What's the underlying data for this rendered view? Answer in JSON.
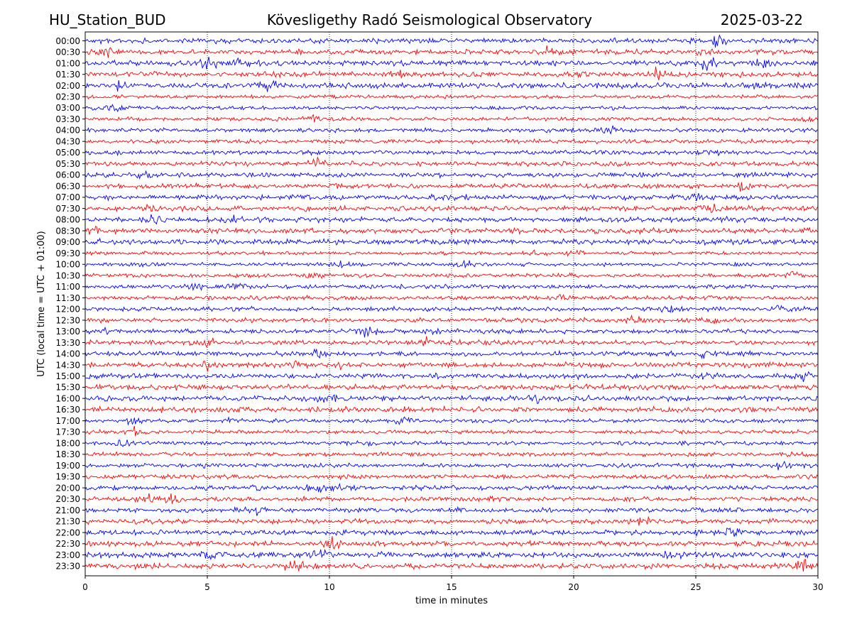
{
  "header": {
    "station": "HU_Station_BUD",
    "observatory": "Kövesligethy Radó Seismological Observatory",
    "date": "2025-03-22"
  },
  "chart_data": {
    "type": "line",
    "title": "Kövesligethy Radó Seismological Observatory",
    "xlabel": "time in minutes",
    "ylabel": "UTC (local time = UTC + 01:00)",
    "xlim": [
      0,
      30
    ],
    "x_ticks": [
      "0",
      "5",
      "10",
      "15",
      "20",
      "25",
      "30"
    ],
    "grid": "vertical dotted at x ticks",
    "trace_colors": [
      "#0000ff",
      "#ff0000"
    ],
    "rows": [
      {
        "label": "00:00",
        "color": "#0000ff",
        "bursts": [
          [
            26.0,
            2.0
          ]
        ]
      },
      {
        "label": "00:30",
        "color": "#ff0000",
        "bursts": [
          [
            0.8,
            1.5
          ],
          [
            18.8,
            1.4
          ],
          [
            25.5,
            1.2
          ]
        ]
      },
      {
        "label": "01:00",
        "color": "#0000ff",
        "bursts": [
          [
            5.0,
            2.2
          ],
          [
            6.2,
            1.6
          ],
          [
            25.5,
            2.4
          ],
          [
            27.7,
            1.6
          ]
        ]
      },
      {
        "label": "01:30",
        "color": "#ff0000",
        "bursts": [
          [
            12.8,
            1.8
          ],
          [
            23.5,
            1.8
          ],
          [
            20.0,
            1.4
          ]
        ]
      },
      {
        "label": "02:00",
        "color": "#0000ff",
        "bursts": [
          [
            7.5,
            1.5
          ],
          [
            1.5,
            1.3
          ]
        ]
      },
      {
        "label": "02:30",
        "color": "#ff0000",
        "bursts": []
      },
      {
        "label": "03:00",
        "color": "#0000ff",
        "bursts": [
          [
            1.1,
            2.0
          ]
        ]
      },
      {
        "label": "03:30",
        "color": "#ff0000",
        "bursts": [
          [
            9.2,
            1.6
          ],
          [
            29.5,
            1.6
          ]
        ]
      },
      {
        "label": "04:00",
        "color": "#0000ff",
        "bursts": [
          [
            21.5,
            1.6
          ]
        ]
      },
      {
        "label": "04:30",
        "color": "#ff0000",
        "bursts": []
      },
      {
        "label": "05:00",
        "color": "#0000ff",
        "bursts": [
          [
            25.5,
            1.3
          ]
        ]
      },
      {
        "label": "05:30",
        "color": "#ff0000",
        "bursts": [
          [
            9.5,
            1.5
          ]
        ]
      },
      {
        "label": "06:00",
        "color": "#0000ff",
        "bursts": [
          [
            2.2,
            1.4
          ]
        ]
      },
      {
        "label": "06:30",
        "color": "#ff0000",
        "bursts": [
          [
            27.0,
            1.3
          ]
        ]
      },
      {
        "label": "07:00",
        "color": "#0000ff",
        "bursts": [
          [
            14.5,
            1.2
          ],
          [
            25.0,
            1.2
          ]
        ]
      },
      {
        "label": "07:30",
        "color": "#ff0000",
        "bursts": [
          [
            25.5,
            1.4
          ],
          [
            2.8,
            1.2
          ]
        ]
      },
      {
        "label": "08:00",
        "color": "#0000ff",
        "bursts": [
          [
            2.9,
            1.4
          ],
          [
            6.0,
            1.2
          ]
        ]
      },
      {
        "label": "08:30",
        "color": "#ff0000",
        "bursts": [
          [
            0.5,
            1.2
          ]
        ]
      },
      {
        "label": "09:00",
        "color": "#0000ff",
        "bursts": []
      },
      {
        "label": "09:30",
        "color": "#ff0000",
        "bursts": [
          [
            18.5,
            1.5
          ],
          [
            20.0,
            1.3
          ]
        ]
      },
      {
        "label": "10:00",
        "color": "#0000ff",
        "bursts": [
          [
            2.5,
            1.6
          ],
          [
            10.5,
            1.5
          ],
          [
            15.5,
            1.2
          ]
        ]
      },
      {
        "label": "10:30",
        "color": "#ff0000",
        "bursts": [
          [
            9.5,
            1.3
          ],
          [
            29.0,
            1.3
          ]
        ]
      },
      {
        "label": "11:00",
        "color": "#0000ff",
        "bursts": [
          [
            6.2,
            2.3
          ],
          [
            4.5,
            1.4
          ]
        ]
      },
      {
        "label": "11:30",
        "color": "#ff0000",
        "bursts": [
          [
            19.5,
            1.2
          ]
        ]
      },
      {
        "label": "12:00",
        "color": "#0000ff",
        "bursts": [
          [
            24.0,
            1.2
          ],
          [
            28.5,
            1.2
          ]
        ]
      },
      {
        "label": "12:30",
        "color": "#ff0000",
        "bursts": [
          [
            22.5,
            1.3
          ],
          [
            25.5,
            1.3
          ]
        ]
      },
      {
        "label": "13:00",
        "color": "#0000ff",
        "bursts": [
          [
            14.3,
            1.8
          ],
          [
            11.5,
            1.4
          ],
          [
            1.0,
            1.3
          ]
        ]
      },
      {
        "label": "13:30",
        "color": "#ff0000",
        "bursts": [
          [
            14.0,
            1.5
          ],
          [
            5.0,
            1.2
          ]
        ]
      },
      {
        "label": "14:00",
        "color": "#0000ff",
        "bursts": [
          [
            9.5,
            1.4
          ],
          [
            25.5,
            1.3
          ]
        ]
      },
      {
        "label": "14:30",
        "color": "#ff0000",
        "bursts": [
          [
            5.0,
            1.6
          ],
          [
            10.5,
            1.5
          ],
          [
            8.5,
            1.3
          ]
        ]
      },
      {
        "label": "15:00",
        "color": "#0000ff",
        "bursts": [
          [
            0.2,
            1.4
          ],
          [
            25.5,
            1.3
          ],
          [
            29.5,
            1.4
          ]
        ]
      },
      {
        "label": "15:30",
        "color": "#ff0000",
        "bursts": []
      },
      {
        "label": "16:00",
        "color": "#0000ff",
        "bursts": [
          [
            10.0,
            1.3
          ],
          [
            18.5,
            1.3
          ]
        ]
      },
      {
        "label": "16:30",
        "color": "#ff0000",
        "bursts": []
      },
      {
        "label": "17:00",
        "color": "#0000ff",
        "bursts": [
          [
            2.0,
            1.5
          ],
          [
            13.0,
            1.6
          ],
          [
            6.0,
            1.2
          ]
        ]
      },
      {
        "label": "17:30",
        "color": "#ff0000",
        "bursts": [
          [
            2.0,
            2.0
          ]
        ]
      },
      {
        "label": "18:00",
        "color": "#0000ff",
        "bursts": [
          [
            1.5,
            1.3
          ],
          [
            11.5,
            1.2
          ]
        ]
      },
      {
        "label": "18:30",
        "color": "#ff0000",
        "bursts": []
      },
      {
        "label": "19:00",
        "color": "#0000ff",
        "bursts": [
          [
            28.5,
            1.3
          ],
          [
            5.0,
            1.2
          ]
        ]
      },
      {
        "label": "19:30",
        "color": "#ff0000",
        "bursts": []
      },
      {
        "label": "20:00",
        "color": "#0000ff",
        "bursts": [
          [
            9.5,
            1.8
          ],
          [
            10.5,
            1.5
          ],
          [
            7.0,
            1.3
          ]
        ]
      },
      {
        "label": "20:30",
        "color": "#ff0000",
        "bursts": [
          [
            3.6,
            1.9
          ],
          [
            2.5,
            1.3
          ]
        ]
      },
      {
        "label": "21:00",
        "color": "#0000ff",
        "bursts": [
          [
            7.0,
            1.3
          ]
        ]
      },
      {
        "label": "21:30",
        "color": "#ff0000",
        "bursts": [
          [
            23.0,
            1.2
          ]
        ]
      },
      {
        "label": "22:00",
        "color": "#0000ff",
        "bursts": [
          [
            26.5,
            1.3
          ]
        ]
      },
      {
        "label": "22:30",
        "color": "#ff0000",
        "bursts": [
          [
            10.2,
            1.4
          ]
        ]
      },
      {
        "label": "23:00",
        "color": "#0000ff",
        "bursts": [
          [
            9.5,
            1.7
          ],
          [
            24.0,
            1.3
          ],
          [
            5.0,
            1.2
          ]
        ]
      },
      {
        "label": "23:30",
        "color": "#ff0000",
        "bursts": [
          [
            29.5,
            2.0
          ],
          [
            8.5,
            1.3
          ]
        ]
      }
    ]
  }
}
